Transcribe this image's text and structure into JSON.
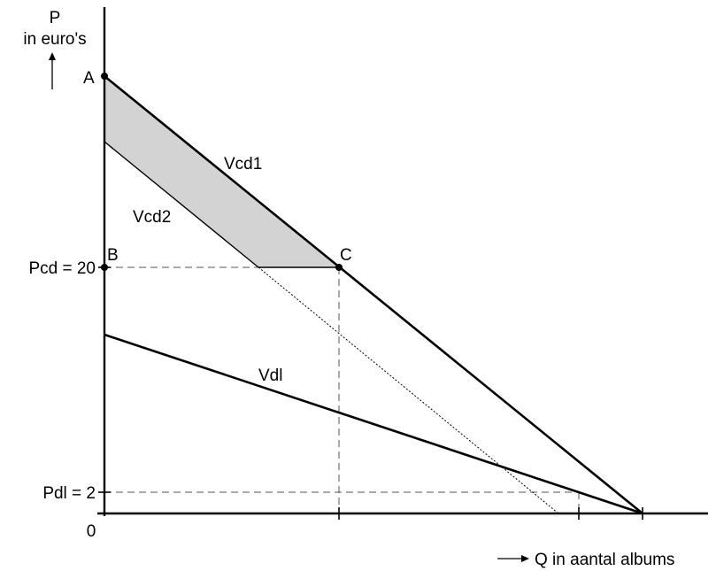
{
  "labels": {
    "y_axis_symbol": "P",
    "y_axis_unit": "in euro's",
    "x_axis": "Q in aantal albums",
    "origin": "0",
    "pcd": "Pcd = 20",
    "pdl": "Pdl = 2",
    "point_a": "A",
    "point_b": "B",
    "point_c": "C",
    "vcd1": "Vcd1",
    "vcd2": "Vcd2",
    "vdl": "Vdl"
  },
  "colors": {
    "line": "#000000",
    "shaded_area": "#d3d3d3",
    "guide_line": "#555555"
  }
}
